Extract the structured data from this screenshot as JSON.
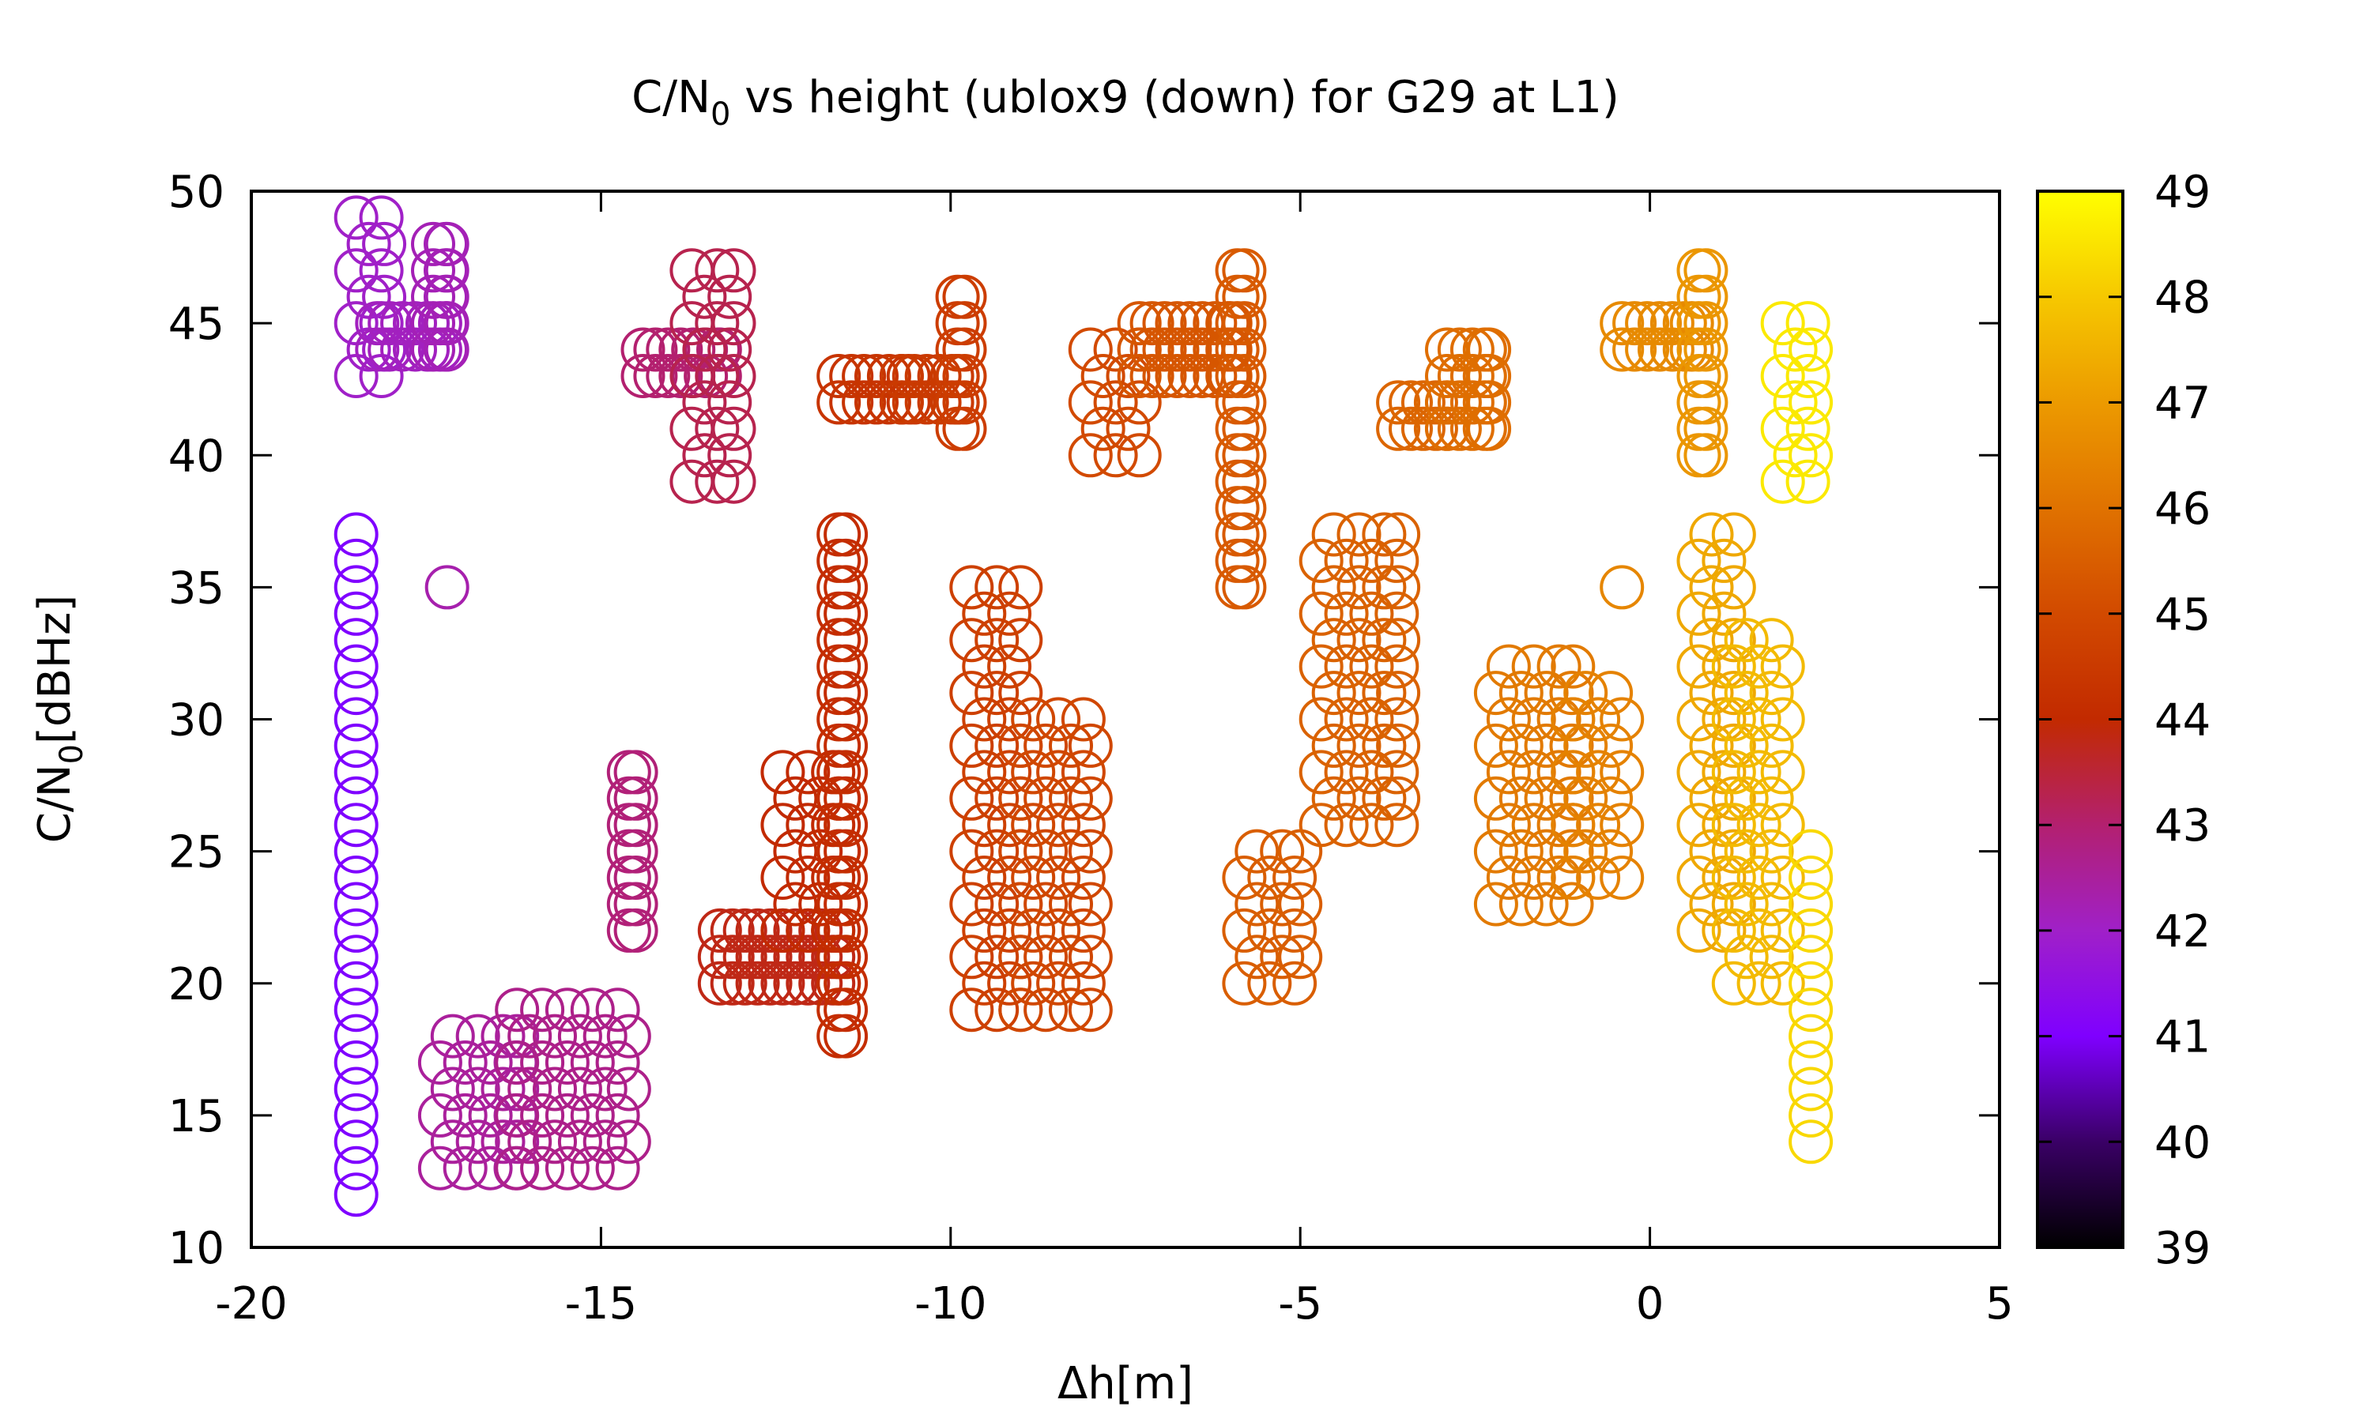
{
  "chart_data": {
    "type": "scatter",
    "title": "C/N",
    "title_sub": "0",
    "title_rest": " vs height (ublox9 (down) for G29 at L1)",
    "xlabel": "Δh[m]",
    "ylabel": "C/N",
    "ylabel_sub": "0",
    "ylabel_rest": "[dBHz]",
    "xlim": [
      -20,
      5
    ],
    "ylim": [
      10,
      50
    ],
    "x_ticks": [
      -20,
      -15,
      -10,
      -5,
      0,
      5
    ],
    "x_tick_labels": [
      "-20",
      "-15",
      "-10",
      "-5",
      "0",
      "5"
    ],
    "y_ticks": [
      10,
      15,
      20,
      25,
      30,
      35,
      40,
      45,
      50
    ],
    "y_tick_labels": [
      "10",
      "15",
      "20",
      "25",
      "30",
      "35",
      "40",
      "45",
      "50"
    ],
    "colorbar": {
      "range": [
        39,
        49
      ],
      "ticks": [
        39,
        40,
        41,
        42,
        43,
        44,
        45,
        46,
        47,
        48,
        49
      ],
      "tick_labels": [
        "39",
        "40",
        "41",
        "42",
        "43",
        "44",
        "45",
        "46",
        "47",
        "48",
        "49"
      ],
      "palette": [
        "#000000",
        "#3a0066",
        "#7f00ff",
        "#a020c8",
        "#b3206f",
        "#c22a00",
        "#d24a00",
        "#e07200",
        "#ec9a00",
        "#f6c800",
        "#ffff00"
      ]
    },
    "marker": "open-circle",
    "grid": false,
    "legend": "none",
    "clusters": [
      {
        "x": [
          -18.5,
          -18.1
        ],
        "y": [
          43,
          49
        ],
        "c": 42.0
      },
      {
        "x": [
          -18.2,
          -17.3
        ],
        "y": [
          44,
          45
        ],
        "c": 42.1
      },
      {
        "x": [
          -17.4,
          -17.2
        ],
        "y": [
          44,
          48
        ],
        "c": 42.2
      },
      {
        "x": [
          -18.5,
          -18.5
        ],
        "y": [
          12,
          37
        ],
        "c": 41.0
      },
      {
        "x": [
          -17.2,
          -17.2
        ],
        "y": [
          35,
          35
        ],
        "c": 42.3
      },
      {
        "x": [
          -17.3,
          -16.2
        ],
        "y": [
          13,
          18
        ],
        "c": 42.5
      },
      {
        "x": [
          -16.2,
          -14.6
        ],
        "y": [
          13,
          19
        ],
        "c": 42.7
      },
      {
        "x": [
          -14.6,
          -14.5
        ],
        "y": [
          22,
          28
        ],
        "c": 42.9
      },
      {
        "x": [
          -14.4,
          -13.3
        ],
        "y": [
          43,
          44
        ],
        "c": 43.0
      },
      {
        "x": [
          -13.7,
          -13.1
        ],
        "y": [
          39,
          47
        ],
        "c": 43.3
      },
      {
        "x": [
          -13.3,
          -11.6
        ],
        "y": [
          20,
          22
        ],
        "c": 43.8
      },
      {
        "x": [
          -12.4,
          -11.6
        ],
        "y": [
          22,
          28
        ],
        "c": 44.0
      },
      {
        "x": [
          -11.6,
          -11.5
        ],
        "y": [
          18,
          37
        ],
        "c": 44.1
      },
      {
        "x": [
          -11.6,
          -10.6
        ],
        "y": [
          42,
          43
        ],
        "c": 44.3
      },
      {
        "x": [
          -10.7,
          -9.9
        ],
        "y": [
          42,
          43
        ],
        "c": 44.5
      },
      {
        "x": [
          -9.9,
          -9.8
        ],
        "y": [
          41,
          46
        ],
        "c": 44.6
      },
      {
        "x": [
          -9.7,
          -9.0
        ],
        "y": [
          19,
          35
        ],
        "c": 44.7
      },
      {
        "x": [
          -9.0,
          -8.0
        ],
        "y": [
          19,
          30
        ],
        "c": 44.9
      },
      {
        "x": [
          -8.0,
          -7.3
        ],
        "y": [
          40,
          44
        ],
        "c": 45.0
      },
      {
        "x": [
          -7.3,
          -6.0
        ],
        "y": [
          43,
          45
        ],
        "c": 45.3
      },
      {
        "x": [
          -5.9,
          -5.8
        ],
        "y": [
          35,
          47
        ],
        "c": 45.4
      },
      {
        "x": [
          -5.8,
          -5.0
        ],
        "y": [
          20,
          25
        ],
        "c": 45.5
      },
      {
        "x": [
          -4.7,
          -3.6
        ],
        "y": [
          26,
          37
        ],
        "c": 45.6
      },
      {
        "x": [
          -3.6,
          -2.9
        ],
        "y": [
          41,
          42
        ],
        "c": 45.7
      },
      {
        "x": [
          -2.9,
          -2.3
        ],
        "y": [
          41,
          44
        ],
        "c": 45.9
      },
      {
        "x": [
          -2.2,
          -1.1
        ],
        "y": [
          23,
          32
        ],
        "c": 46.2
      },
      {
        "x": [
          -1.1,
          -0.4
        ],
        "y": [
          24,
          31
        ],
        "c": 46.4
      },
      {
        "x": [
          -0.4,
          -0.4
        ],
        "y": [
          35,
          35
        ],
        "c": 46.5
      },
      {
        "x": [
          -0.4,
          0.6
        ],
        "y": [
          44,
          45
        ],
        "c": 46.6
      },
      {
        "x": [
          0.7,
          0.8
        ],
        "y": [
          40,
          47
        ],
        "c": 46.9
      },
      {
        "x": [
          0.7,
          1.2
        ],
        "y": [
          22,
          37
        ],
        "c": 47.3
      },
      {
        "x": [
          1.2,
          1.9
        ],
        "y": [
          20,
          33
        ],
        "c": 47.7
      },
      {
        "x": [
          1.9,
          2.3
        ],
        "y": [
          39,
          45
        ],
        "c": 48.6
      },
      {
        "x": [
          2.3,
          2.3
        ],
        "y": [
          14,
          25
        ],
        "c": 48.3
      }
    ]
  }
}
